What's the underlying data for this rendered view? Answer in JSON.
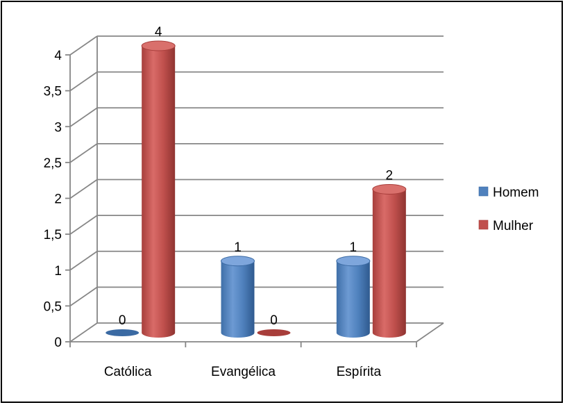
{
  "chart_data": {
    "type": "bar",
    "title": "",
    "xlabel": "",
    "ylabel": "",
    "categories": [
      "Católica",
      "Evangélica",
      "Espírita"
    ],
    "series": [
      {
        "name": "Homem",
        "values": [
          0,
          1,
          1
        ],
        "color": "#4f81bd"
      },
      {
        "name": "Mulher",
        "values": [
          4,
          0,
          2
        ],
        "color": "#c0504d"
      }
    ],
    "ylim": [
      0,
      4
    ],
    "yticks": [
      "0",
      "0,5",
      "1",
      "1,5",
      "2",
      "2,5",
      "3",
      "3,5",
      "4"
    ],
    "ytick_values": [
      0,
      0.5,
      1,
      1.5,
      2,
      2.5,
      3,
      3.5,
      4
    ],
    "data_labels": true,
    "grid": true,
    "legend_position": "right",
    "style": "3d-cylinder"
  }
}
